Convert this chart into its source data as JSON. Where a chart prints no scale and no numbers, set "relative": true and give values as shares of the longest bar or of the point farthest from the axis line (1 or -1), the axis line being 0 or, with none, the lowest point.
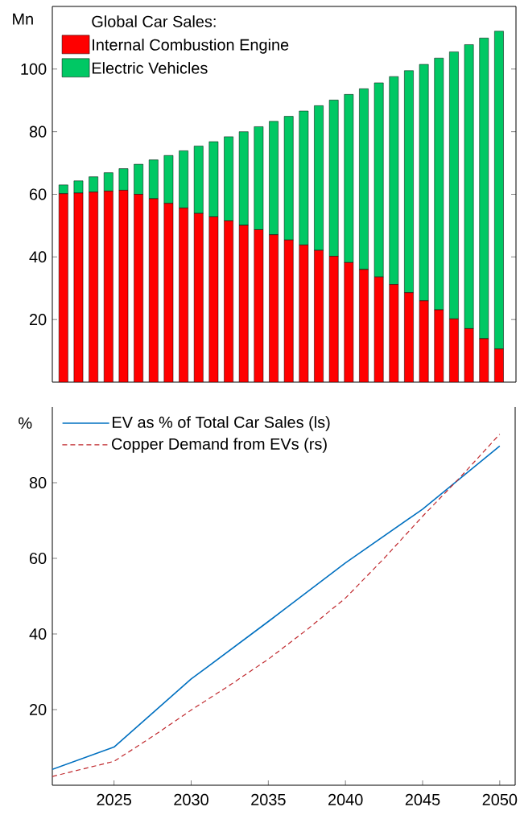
{
  "chart_data": [
    {
      "type": "bar",
      "stacked": true,
      "ylabel": "Mn",
      "legend_title": "Global Car Sales:",
      "legend": "top left",
      "tick_labels": "y",
      "categories": [
        null,
        null,
        null,
        null,
        null,
        null,
        null,
        null,
        null,
        null,
        null,
        null,
        null,
        null,
        null,
        null,
        null,
        null,
        null,
        null,
        null,
        null,
        null,
        null,
        null,
        null,
        null,
        null,
        null,
        null
      ],
      "ylim": [
        0,
        120
      ],
      "yticks": [
        20,
        40,
        60,
        80,
        100
      ],
      "series": [
        {
          "name": "Internal Combustion Engine",
          "color": "#ff0000",
          "values": [
            60.2,
            60.4,
            60.7,
            61.0,
            61.3,
            60.0,
            58.6,
            57.1,
            55.6,
            53.9,
            52.8,
            51.5,
            50.1,
            48.7,
            47.1,
            45.4,
            43.8,
            42.1,
            40.2,
            38.2,
            36.0,
            33.6,
            31.2,
            28.6,
            26.0,
            23.1,
            20.2,
            17.1,
            13.9,
            10.6
          ]
        },
        {
          "name": "Electric Vehicles",
          "color": "#00c864",
          "values": [
            2.8,
            3.9,
            4.9,
            5.9,
            6.9,
            9.6,
            12.4,
            15.3,
            18.3,
            21.5,
            24.0,
            26.9,
            29.9,
            32.9,
            36.2,
            39.5,
            42.8,
            46.2,
            49.9,
            53.7,
            57.7,
            62.0,
            66.4,
            70.9,
            75.5,
            80.4,
            85.3,
            90.7,
            96.0,
            101.5
          ]
        }
      ]
    },
    {
      "type": "line",
      "ylabel": "%",
      "legend": "top left",
      "marker": "none",
      "xlim": [
        2021,
        2051
      ],
      "xticks": [
        2025,
        2030,
        2035,
        2040,
        2045,
        2050
      ],
      "ylim": [
        0,
        100
      ],
      "yticks": [
        20,
        40,
        60,
        80
      ],
      "series": [
        {
          "name": "EV as % of Total Car Sales (ls)",
          "color": "#0070c0",
          "line_style": "solid",
          "x": [
            2021,
            2025,
            2030,
            2035,
            2040,
            2045,
            2050
          ],
          "values": [
            4.2,
            10.1,
            28.1,
            43.3,
            58.8,
            73.0,
            89.7
          ]
        }
      ]
    },
    {
      "type": "line",
      "relative": true,
      "legend": "top left",
      "marker": "none",
      "tick_labels": false,
      "xlim": [
        2021,
        2051
      ],
      "series": [
        {
          "name": "Copper Demand from EVs (rs)",
          "color": "#c0282d",
          "line_style": "dashed",
          "x": [
            2021,
            2025,
            2027.5,
            2030,
            2032.5,
            2035,
            2037.5,
            2040,
            2042.5,
            2045,
            2047.5,
            2050
          ],
          "values": [
            0.025,
            0.068,
            0.139,
            0.214,
            0.285,
            0.359,
            0.443,
            0.533,
            0.646,
            0.766,
            0.88,
            1
          ]
        }
      ]
    }
  ]
}
